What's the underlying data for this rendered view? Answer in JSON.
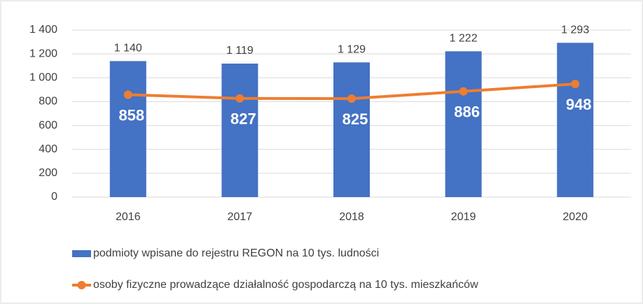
{
  "chart_data": {
    "type": "combo",
    "categories": [
      "2016",
      "2017",
      "2018",
      "2019",
      "2020"
    ],
    "series": [
      {
        "name": "podmioty wpisane do rejestru REGON na 10 tys. ludności",
        "type": "bar",
        "color": "#4472c4",
        "values": [
          1140,
          1119,
          1129,
          1222,
          1293
        ],
        "value_labels": [
          "1 140",
          "1 119",
          "1 129",
          "1 222",
          "1 293"
        ]
      },
      {
        "name": "osoby fizyczne prowadzące działalność gospodarczą na 10 tys. mieszkańców",
        "type": "line",
        "color": "#ed7d31",
        "values": [
          858,
          827,
          825,
          886,
          948
        ]
      }
    ],
    "ylim": [
      0,
      1400
    ],
    "yticks": [
      0,
      200,
      400,
      600,
      800,
      {
        "value": 1000,
        "label": "1 000"
      },
      {
        "value": 1200,
        "label": "1 200"
      },
      {
        "value": 1400,
        "label": "1 400"
      }
    ],
    "grid": true,
    "legend": "bottom"
  }
}
